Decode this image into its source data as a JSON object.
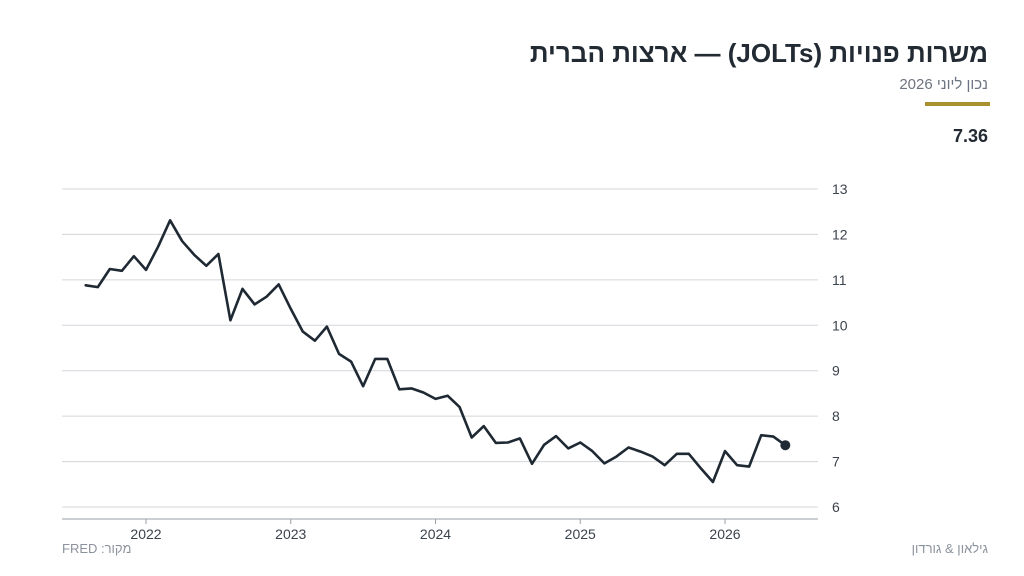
{
  "header": {
    "title": "משרות פנויות (JOLTs) — ארצות הברית",
    "subtitle": "נכון ליוני 2026",
    "latest_value": "7.36"
  },
  "footer": {
    "source": "מקור: FRED",
    "brand": "גילאון & גורדון"
  },
  "colors": {
    "line": "#1f2933",
    "grid": "#d3d6da",
    "accent": "#a8912e"
  },
  "chart_data": {
    "type": "line",
    "title": "משרות פנויות (JOLTs) — ארצות הברית",
    "xlabel": "",
    "ylabel": "",
    "yaxis_side": "right",
    "ylim": [
      5.7,
      13.3
    ],
    "yticks": [
      6,
      7,
      8,
      9,
      10,
      11,
      12,
      13
    ],
    "xlim": [
      "2021-06",
      "2026-12"
    ],
    "xticks": [
      "2022",
      "2023",
      "2024",
      "2025",
      "2026"
    ],
    "grid": true,
    "legend": "none",
    "series": [
      {
        "x": [
          "2021-08",
          "2021-09",
          "2021-10",
          "2021-11",
          "2021-12",
          "2022-01",
          "2022-02",
          "2022-03",
          "2022-04",
          "2022-05",
          "2022-06",
          "2022-07",
          "2022-08",
          "2022-09",
          "2022-10",
          "2022-11",
          "2022-12",
          "2023-01",
          "2023-02",
          "2023-03",
          "2023-04",
          "2023-05",
          "2023-06",
          "2023-07",
          "2023-08",
          "2023-09",
          "2023-10",
          "2023-11",
          "2023-12",
          "2024-01",
          "2024-02",
          "2024-03",
          "2024-04",
          "2024-05",
          "2024-06",
          "2024-07",
          "2024-08",
          "2024-09",
          "2024-10",
          "2024-11",
          "2024-12",
          "2025-01",
          "2025-02",
          "2025-03",
          "2025-04",
          "2025-05",
          "2025-06",
          "2025-07",
          "2025-08",
          "2025-09",
          "2025-10",
          "2025-11",
          "2025-12",
          "2026-01",
          "2026-02",
          "2026-03",
          "2026-04",
          "2026-05",
          "2026-06"
        ],
        "values": [
          10.88,
          10.84,
          11.24,
          11.2,
          11.52,
          11.22,
          11.73,
          12.31,
          11.85,
          11.55,
          11.31,
          11.57,
          10.11,
          10.8,
          10.46,
          10.63,
          10.9,
          10.36,
          9.86,
          9.66,
          9.97,
          9.37,
          9.2,
          8.66,
          9.26,
          9.26,
          8.59,
          8.61,
          8.52,
          8.38,
          8.45,
          8.2,
          7.53,
          7.78,
          7.41,
          7.42,
          7.51,
          6.95,
          7.37,
          7.56,
          7.29,
          7.42,
          7.23,
          6.96,
          7.11,
          7.31,
          7.22,
          7.11,
          6.92,
          7.17,
          7.17,
          6.85,
          6.55,
          7.23,
          6.92,
          6.89,
          7.58,
          7.55,
          7.36
        ]
      }
    ]
  }
}
